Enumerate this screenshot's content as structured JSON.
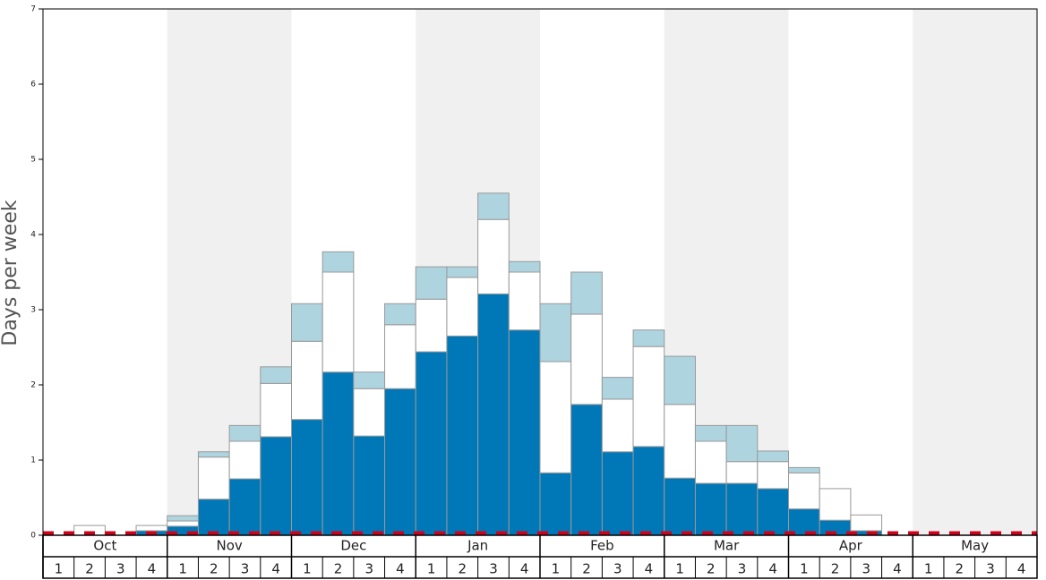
{
  "chart_data": {
    "type": "stacked-bar",
    "y_label": "Days per week",
    "groups": [
      "Oct",
      "Nov",
      "Dec",
      "Jan",
      "Feb",
      "Mar",
      "Apr",
      "May"
    ],
    "categories": [
      "1",
      "2",
      "3",
      "4",
      "1",
      "2",
      "3",
      "4",
      "1",
      "2",
      "3",
      "4",
      "1",
      "2",
      "3",
      "4",
      "1",
      "2",
      "3",
      "4",
      "1",
      "2",
      "3",
      "4",
      "1",
      "2",
      "3",
      "4",
      "1",
      "2",
      "3",
      "4"
    ],
    "series": [
      {
        "color": "#0077b6",
        "values": [
          0,
          0,
          0,
          0.06,
          0.12,
          0.48,
          0.75,
          1.31,
          1.54,
          2.17,
          1.32,
          1.95,
          2.44,
          2.65,
          3.21,
          2.73,
          0.83,
          1.74,
          1.11,
          1.18,
          0.76,
          0.69,
          0.69,
          0.62,
          0.35,
          0.2,
          0.06,
          0,
          0,
          0,
          0,
          0
        ]
      },
      {
        "color": "#ffffff",
        "values": [
          0,
          0.13,
          0,
          0.07,
          0.07,
          0.56,
          0.5,
          0.71,
          1.04,
          1.33,
          0.63,
          0.85,
          0.7,
          0.78,
          0.99,
          0.77,
          1.48,
          1.2,
          0.7,
          1.33,
          0.98,
          0.56,
          0.29,
          0.36,
          0.48,
          0.42,
          0.21,
          0,
          0,
          0,
          0,
          0
        ]
      },
      {
        "color": "#aed4e0",
        "values": [
          0,
          0,
          0,
          0,
          0.07,
          0.07,
          0.21,
          0.22,
          0.5,
          0.27,
          0.22,
          0.28,
          0.43,
          0.14,
          0.35,
          0.14,
          0.77,
          0.56,
          0.29,
          0.22,
          0.64,
          0.21,
          0.48,
          0.14,
          0.07,
          0,
          0,
          0,
          0,
          0,
          0,
          0
        ]
      }
    ],
    "reference_line": {
      "value": 0.03,
      "color": "#d0021b"
    },
    "ylim": [
      0,
      7
    ],
    "yticks": [
      0,
      1,
      2,
      3,
      4,
      5,
      6,
      7
    ]
  }
}
